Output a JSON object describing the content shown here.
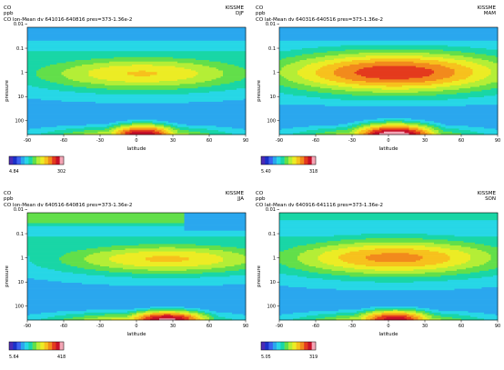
{
  "palette": [
    "#1a30c9",
    "#3b62ef",
    "#2aa7ee",
    "#27d7e6",
    "#19d6a6",
    "#62df4a",
    "#b4ee36",
    "#ecec24",
    "#f7c11d",
    "#f28a1c",
    "#e43a1d",
    "#c7102a",
    "#f4a6b6"
  ],
  "colorbar_colors": [
    "#4b2bb5",
    "#1a30c9",
    "#3b62ef",
    "#2aa7ee",
    "#27d7e6",
    "#19d6a6",
    "#62df4a",
    "#b4ee36",
    "#ecec24",
    "#f7c11d",
    "#f28a1c",
    "#e43a1d",
    "#c7102a",
    "#f4a6b6"
  ],
  "chart_data": [
    {
      "type": "heatmap",
      "species": "CO",
      "units": "ppb",
      "model": "KISSME",
      "season": "DJF",
      "title": "CO lon-Mean dv 641016-640816 pres=373-1.36e-2",
      "xlabel": "latitude",
      "ylabel": "pressure",
      "x_ticks": [
        "-90",
        "-60",
        "-30",
        "0",
        "30",
        "60",
        "90"
      ],
      "y_ticks": [
        "0.01",
        "0.1",
        "1",
        "10",
        "100"
      ],
      "ylim": [
        0.0136,
        373
      ],
      "y_scale": "log",
      "colorbar_min": "4.84",
      "colorbar_max": "302",
      "fields": {
        "lat_peak": 5,
        "upper_peak_level": 7.6,
        "upper_peak_log10p": 0.05,
        "upper_lat_halfwidth": 95,
        "upper_log_halfwidth": 0.58,
        "upper_profile_a": 0.62,
        "upper_top_level": 1.3,
        "upper_top_log10p": -1.8,
        "trough_level": 0.5,
        "trough_log10p": 1.7,
        "surface_peak_level": 11.5,
        "surface_lat_halfwidth": 35,
        "surface_log_halfwidth": 0.5,
        "surface_log10p": 2.58,
        "sh_top_corner": false,
        "nh_top_corner": false,
        "tropical_band_level": 0.8,
        "tropical_band_log10p": 2.0,
        "purple_band_tilt": 0.0
      }
    },
    {
      "type": "heatmap",
      "species": "CO",
      "units": "ppb",
      "model": "KISSME",
      "season": "MAM",
      "title": "CO lat-Mean dv 640316-640516 pres=373-1.36e-2",
      "xlabel": "latitude",
      "ylabel": "pressure",
      "x_ticks": [
        "-90",
        "-60",
        "-30",
        "0",
        "30",
        "60",
        "90"
      ],
      "y_ticks": [
        "0.01",
        "0.1",
        "1",
        "10",
        "100"
      ],
      "ylim": [
        0.0136,
        373
      ],
      "y_scale": "log",
      "colorbar_min": "5.40",
      "colorbar_max": "318",
      "fields": {
        "lat_peak": 5,
        "upper_peak_level": 10.3,
        "upper_peak_log10p": 0.0,
        "upper_lat_halfwidth": 100,
        "upper_log_halfwidth": 0.68,
        "upper_profile_a": 0.6,
        "upper_top_level": 1.1,
        "upper_top_log10p": -1.8,
        "trough_level": 0.4,
        "trough_log10p": 1.7,
        "surface_peak_level": 12.6,
        "surface_lat_halfwidth": 42,
        "surface_log_halfwidth": 0.55,
        "surface_log10p": 2.6,
        "sh_top_corner": false,
        "nh_top_corner": false,
        "tropical_band_level": 0.7,
        "tropical_band_log10p": 2.05,
        "purple_band_tilt": 0.0
      }
    },
    {
      "type": "heatmap",
      "species": "CO",
      "units": "ppb",
      "model": "KISSME",
      "season": "JJA",
      "title": "CO lon-Mean dv 640516-640816 pres=373-1.36e-2",
      "xlabel": "latitude",
      "ylabel": "pressure",
      "x_ticks": [
        "-90",
        "-60",
        "-30",
        "0",
        "30",
        "60",
        "90"
      ],
      "y_ticks": [
        "0.01",
        "0.1",
        "1",
        "10",
        "100"
      ],
      "ylim": [
        0.0136,
        373
      ],
      "y_scale": "log",
      "colorbar_min": "5.64",
      "colorbar_max": "418",
      "fields": {
        "lat_peak": 25,
        "upper_peak_level": 7.7,
        "upper_peak_log10p": 0.05,
        "upper_lat_halfwidth": 95,
        "upper_log_halfwidth": 0.55,
        "upper_profile_a": 0.7,
        "upper_top_level": 4.2,
        "upper_top_log10p": -1.7,
        "trough_level": 0.7,
        "trough_log10p": 1.75,
        "surface_peak_level": 11.8,
        "surface_lat_halfwidth": 40,
        "surface_log_halfwidth": 0.42,
        "surface_log10p": 2.55,
        "sh_top_corner": false,
        "nh_top_corner": true,
        "tropical_band_level": -0.2,
        "tropical_band_log10p": 1.95,
        "purple_band_tilt": 0.45
      }
    },
    {
      "type": "heatmap",
      "species": "CO",
      "units": "ppb",
      "model": "KISSME",
      "season": "SON",
      "title": "CO lat-Mean dv 640916-641116 pres=373-1.36e-2",
      "xlabel": "latitude",
      "ylabel": "pressure",
      "x_ticks": [
        "-90",
        "-60",
        "-30",
        "0",
        "30",
        "60",
        "90"
      ],
      "y_ticks": [
        "0.01",
        "0.1",
        "1",
        "10",
        "100"
      ],
      "ylim": [
        0.0136,
        373
      ],
      "y_scale": "log",
      "colorbar_min": "5.05",
      "colorbar_max": "319",
      "fields": {
        "lat_peak": 5,
        "upper_peak_level": 8.9,
        "upper_peak_log10p": 0.0,
        "upper_lat_halfwidth": 95,
        "upper_log_halfwidth": 0.62,
        "upper_profile_a": 0.62,
        "upper_top_level": 2.8,
        "upper_top_log10p": -1.8,
        "trough_level": 0.8,
        "trough_log10p": 1.75,
        "surface_peak_level": 11.2,
        "surface_lat_halfwidth": 38,
        "surface_log_halfwidth": 0.45,
        "surface_log10p": 2.55,
        "sh_top_corner": false,
        "nh_top_corner": false,
        "tropical_band_level": 0.6,
        "tropical_band_log10p": 1.95,
        "purple_band_tilt": 0.0
      }
    }
  ]
}
